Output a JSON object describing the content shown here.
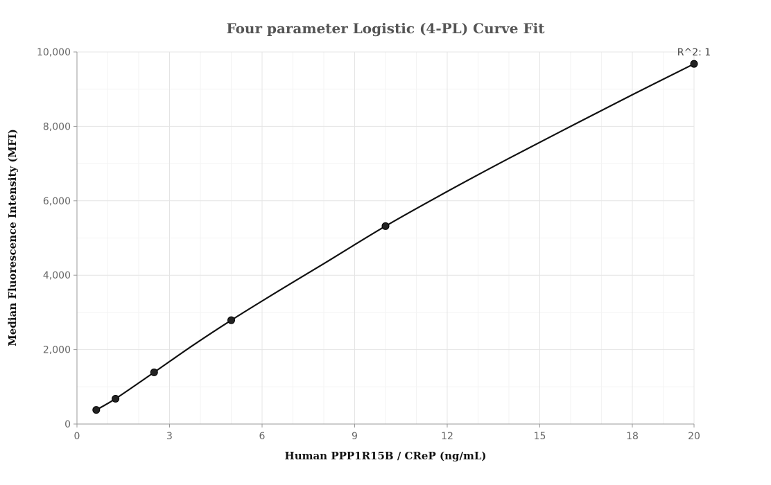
{
  "chart_data": {
    "type": "scatter",
    "title": "Four parameter Logistic (4-PL) Curve Fit",
    "xlabel": "Human PPP1R15B / CReP (ng/mL)",
    "ylabel": "Median Fluorescence Intensity (MFI)",
    "xlim": [
      0,
      20
    ],
    "ylim": [
      0,
      10000
    ],
    "x_ticks": [
      0,
      3,
      6,
      9,
      12,
      15,
      18,
      20
    ],
    "x_tick_labels": [
      "0",
      "3",
      "6",
      "9",
      "12",
      "15",
      "18",
      "20"
    ],
    "y_ticks": [
      0,
      2000,
      4000,
      6000,
      8000,
      10000
    ],
    "y_tick_labels": [
      "0",
      "2,000",
      "4,000",
      "6,000",
      "8,000",
      "10,000"
    ],
    "grid": true,
    "series": [
      {
        "marker": "circle",
        "color": "#222222",
        "x": [
          0.625,
          1.25,
          2.5,
          5,
          10,
          20
        ],
        "y": [
          380,
          680,
          1390,
          2790,
          5320,
          9680
        ]
      }
    ],
    "fit_curve": {
      "type": "4PL",
      "color": "#111111",
      "x": [
        0.625,
        1.25,
        2.5,
        3.75,
        5,
        6.5,
        8,
        10,
        12,
        14,
        16,
        18,
        20
      ],
      "y": [
        380,
        680,
        1390,
        2110,
        2790,
        3560,
        4310,
        5320,
        6250,
        7140,
        8000,
        8850,
        9680
      ]
    },
    "annotations": [
      {
        "text": "R^2: 1"
      }
    ]
  }
}
